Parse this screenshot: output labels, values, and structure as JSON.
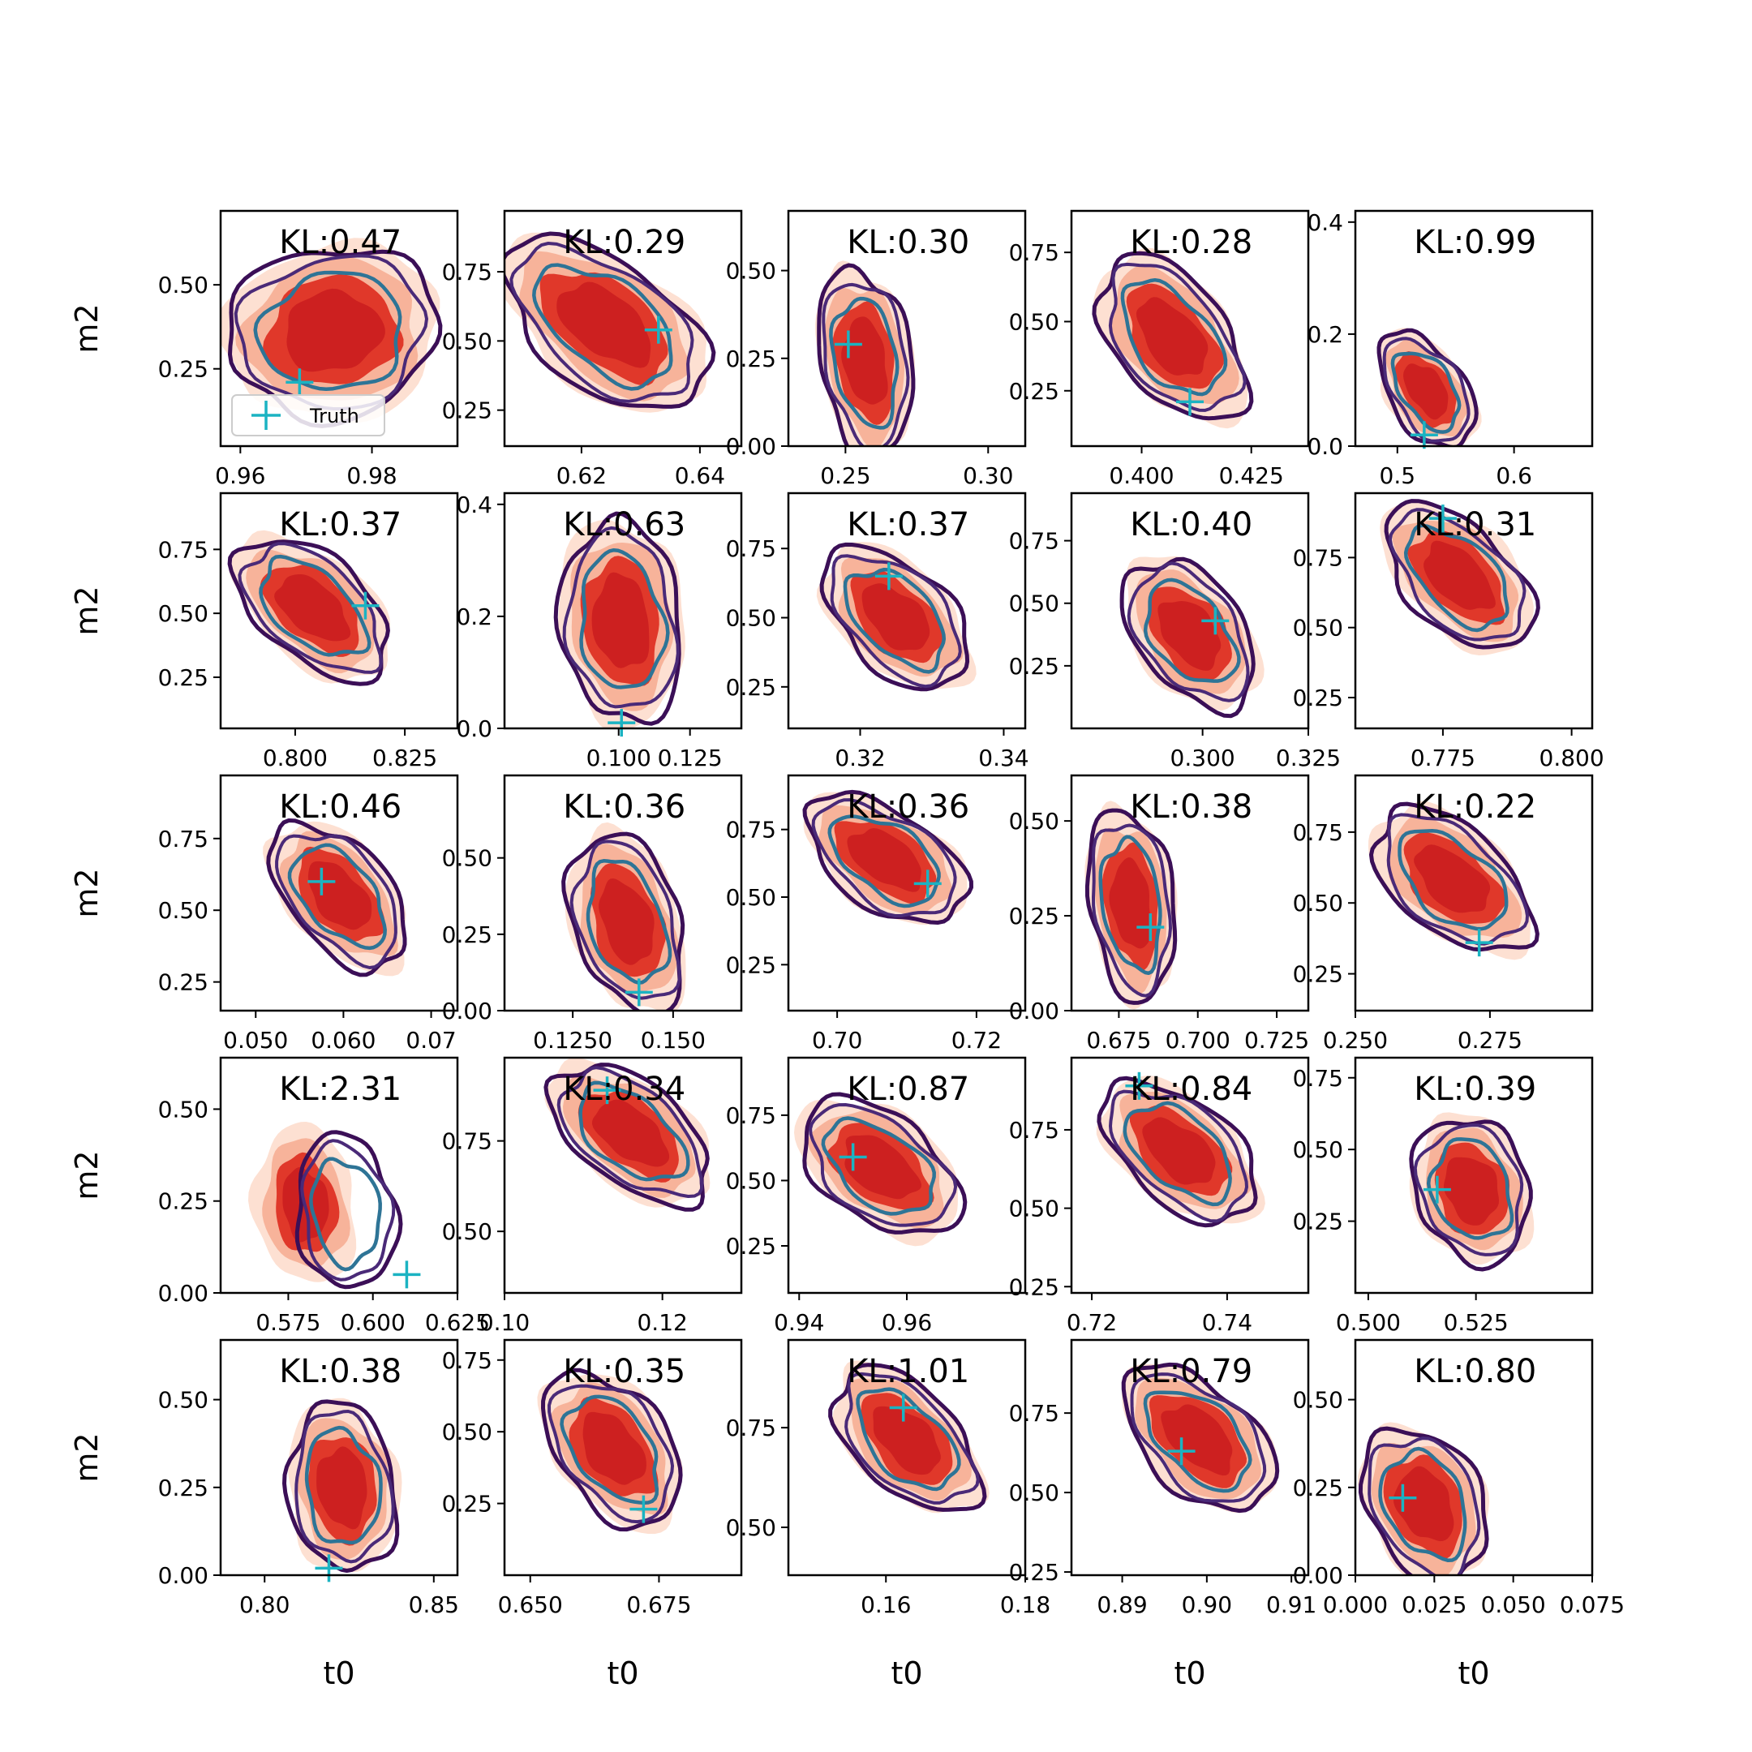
{
  "figure": {
    "x_axis_label": "t0",
    "y_axis_label": "m2",
    "legend_label": "Truth",
    "colors": {
      "filled_outer": "#fde0d2",
      "filled_mid": "#f7b39a",
      "filled_inner": "#e0382a",
      "filled_core": "#cd2020",
      "contour_outer": "#3b0f57",
      "contour_mid": "#4a2a78",
      "contour_inner": "#2e7496",
      "truth_marker": "#1bb3c2"
    }
  },
  "chart_data": [
    {
      "type": "contour",
      "kl": "KL:0.47",
      "xlim": [
        0.957,
        0.993
      ],
      "ylim": [
        0.02,
        0.72
      ],
      "xticks": [
        0.96,
        0.98
      ],
      "xtick_labels": [
        "0.96",
        "0.98"
      ],
      "yticks": [
        0.25,
        0.5
      ],
      "ytick_labels": [
        "0.25",
        "0.50"
      ],
      "truth": [
        0.969,
        0.21
      ],
      "center": [
        0.974,
        0.36
      ],
      "spread": [
        0.012,
        0.17
      ],
      "tilt": 0.05,
      "legend": true
    },
    {
      "type": "contour",
      "kl": "KL:0.29",
      "xlim": [
        0.607,
        0.647
      ],
      "ylim": [
        0.12,
        0.97
      ],
      "xticks": [
        0.62,
        0.64
      ],
      "xtick_labels": [
        "0.62",
        "0.64"
      ],
      "yticks": [
        0.25,
        0.5,
        0.75
      ],
      "ytick_labels": [
        "0.25",
        "0.50",
        "0.75"
      ],
      "truth": [
        0.633,
        0.54
      ],
      "center": [
        0.624,
        0.56
      ],
      "spread": [
        0.0095,
        0.24
      ],
      "tilt": -0.75
    },
    {
      "type": "contour",
      "kl": "KL:0.30",
      "xlim": [
        0.23,
        0.313
      ],
      "ylim": [
        0.0,
        0.67
      ],
      "xticks": [
        0.25,
        0.3
      ],
      "xtick_labels": [
        "0.25",
        "0.30"
      ],
      "yticks": [
        0.0,
        0.25,
        0.5
      ],
      "ytick_labels": [
        "0.00",
        "0.25",
        "0.50"
      ],
      "truth": [
        0.251,
        0.29
      ],
      "center": [
        0.257,
        0.24
      ],
      "spread": [
        0.012,
        0.18
      ],
      "tilt": -0.2
    },
    {
      "type": "contour",
      "kl": "KL:0.28",
      "xlim": [
        0.384,
        0.438
      ],
      "ylim": [
        0.05,
        0.9
      ],
      "xticks": [
        0.4,
        0.425
      ],
      "xtick_labels": [
        "0.400",
        "0.425"
      ],
      "yticks": [
        0.25,
        0.5,
        0.75
      ],
      "ytick_labels": [
        "0.25",
        "0.50",
        "0.75"
      ],
      "truth": [
        0.411,
        0.21
      ],
      "center": [
        0.407,
        0.44
      ],
      "spread": [
        0.01,
        0.22
      ],
      "tilt": -0.6
    },
    {
      "type": "contour",
      "kl": "KL:0.99",
      "xlim": [
        0.464,
        0.667
      ],
      "ylim": [
        0.0,
        0.42
      ],
      "xticks": [
        0.5,
        0.6
      ],
      "xtick_labels": [
        "0.5",
        "0.6"
      ],
      "yticks": [
        0.0,
        0.2,
        0.4
      ],
      "ytick_labels": [
        "0.0",
        "0.2",
        "0.4"
      ],
      "truth": [
        0.523,
        0.02
      ],
      "center": [
        0.525,
        0.1
      ],
      "spread": [
        0.025,
        0.075
      ],
      "tilt": -0.55
    },
    {
      "type": "contour",
      "kl": "KL:0.37",
      "xlim": [
        0.783,
        0.837
      ],
      "ylim": [
        0.05,
        0.97
      ],
      "xticks": [
        0.8,
        0.825
      ],
      "xtick_labels": [
        "0.800",
        "0.825"
      ],
      "yticks": [
        0.25,
        0.5,
        0.75
      ],
      "ytick_labels": [
        "0.25",
        "0.50",
        "0.75"
      ],
      "truth": [
        0.816,
        0.53
      ],
      "center": [
        0.804,
        0.52
      ],
      "spread": [
        0.01,
        0.21
      ],
      "tilt": -0.7
    },
    {
      "type": "contour",
      "kl": "KL:0.63",
      "xlim": [
        0.06,
        0.143
      ],
      "ylim": [
        0.0,
        0.42
      ],
      "xticks": [
        0.1,
        0.125
      ],
      "xtick_labels": [
        "0.100",
        "0.125"
      ],
      "yticks": [
        0.0,
        0.2,
        0.4
      ],
      "ytick_labels": [
        "0.0",
        "0.2",
        "0.4"
      ],
      "truth": [
        0.101,
        0.01
      ],
      "center": [
        0.101,
        0.19
      ],
      "spread": [
        0.016,
        0.12
      ],
      "tilt": -0.1
    },
    {
      "type": "contour",
      "kl": "KL:0.37",
      "xlim": [
        0.31,
        0.343
      ],
      "ylim": [
        0.1,
        0.95
      ],
      "xticks": [
        0.32,
        0.34
      ],
      "xtick_labels": [
        "0.32",
        "0.34"
      ],
      "yticks": [
        0.25,
        0.5,
        0.75
      ],
      "ytick_labels": [
        "0.25",
        "0.50",
        "0.75"
      ],
      "truth": [
        0.324,
        0.65
      ],
      "center": [
        0.325,
        0.5
      ],
      "spread": [
        0.006,
        0.19
      ],
      "tilt": -0.6
    },
    {
      "type": "contour",
      "kl": "KL:0.40",
      "xlim": [
        0.269,
        0.325
      ],
      "ylim": [
        0.0,
        0.94
      ],
      "xticks": [
        0.3,
        0.325
      ],
      "xtick_labels": [
        "0.300",
        "0.325"
      ],
      "yticks": [
        0.25,
        0.5,
        0.75
      ],
      "ytick_labels": [
        "0.25",
        "0.50",
        "0.75"
      ],
      "truth": [
        0.303,
        0.43
      ],
      "center": [
        0.297,
        0.38
      ],
      "spread": [
        0.01,
        0.21
      ],
      "tilt": -0.45
    },
    {
      "type": "contour",
      "kl": "KL:0.31",
      "xlim": [
        0.758,
        0.804
      ],
      "ylim": [
        0.14,
        0.98
      ],
      "xticks": [
        0.775,
        0.8
      ],
      "xtick_labels": [
        "0.775",
        "0.800"
      ],
      "yticks": [
        0.25,
        0.5,
        0.75
      ],
      "ytick_labels": [
        "0.25",
        "0.50",
        "0.75"
      ],
      "truth": [
        0.775,
        0.89
      ],
      "center": [
        0.778,
        0.68
      ],
      "spread": [
        0.008,
        0.2
      ],
      "tilt": -0.75
    },
    {
      "type": "contour",
      "kl": "KL:0.46",
      "xlim": [
        0.046,
        0.073
      ],
      "ylim": [
        0.15,
        0.97
      ],
      "xticks": [
        0.05,
        0.06,
        0.07
      ],
      "xtick_labels": [
        "0.050",
        "0.060",
        "0.07"
      ],
      "yticks": [
        0.25,
        0.5,
        0.75
      ],
      "ytick_labels": [
        "0.25",
        "0.50",
        "0.75"
      ],
      "truth": [
        0.0575,
        0.6
      ],
      "center": [
        0.0595,
        0.55
      ],
      "spread": [
        0.0045,
        0.19
      ],
      "tilt": -0.65
    },
    {
      "type": "contour",
      "kl": "KL:0.36",
      "xlim": [
        0.108,
        0.167
      ],
      "ylim": [
        0.0,
        0.77
      ],
      "xticks": [
        0.125,
        0.15
      ],
      "xtick_labels": [
        "0.1250",
        "0.150"
      ],
      "yticks": [
        0.0,
        0.25,
        0.5
      ],
      "ytick_labels": [
        "0.00",
        "0.25",
        "0.50"
      ],
      "truth": [
        0.1415,
        0.06
      ],
      "center": [
        0.1385,
        0.29
      ],
      "spread": [
        0.01,
        0.2
      ],
      "tilt": -0.3
    },
    {
      "type": "contour",
      "kl": "KL:0.36",
      "xlim": [
        0.693,
        0.727
      ],
      "ylim": [
        0.08,
        0.95
      ],
      "xticks": [
        0.7,
        0.72
      ],
      "xtick_labels": [
        "0.70",
        "0.72"
      ],
      "yticks": [
        0.25,
        0.5,
        0.75
      ],
      "ytick_labels": [
        "0.25",
        "0.50",
        "0.75"
      ],
      "truth": [
        0.713,
        0.55
      ],
      "center": [
        0.707,
        0.64
      ],
      "spread": [
        0.0065,
        0.18
      ],
      "tilt": -0.7
    },
    {
      "type": "contour",
      "kl": "KL:0.38",
      "xlim": [
        0.66,
        0.735
      ],
      "ylim": [
        0.0,
        0.62
      ],
      "xticks": [
        0.675,
        0.7,
        0.725
      ],
      "xtick_labels": [
        "0.675",
        "0.700",
        "0.725"
      ],
      "yticks": [
        0.0,
        0.25,
        0.5
      ],
      "ytick_labels": [
        "0.00",
        "0.25",
        "0.50"
      ],
      "truth": [
        0.685,
        0.22
      ],
      "center": [
        0.679,
        0.28
      ],
      "spread": [
        0.01,
        0.17
      ],
      "tilt": -0.2
    },
    {
      "type": "contour",
      "kl": "KL:0.22",
      "xlim": [
        0.25,
        0.294
      ],
      "ylim": [
        0.12,
        0.95
      ],
      "xticks": [
        0.25,
        0.275
      ],
      "xtick_labels": [
        "0.250",
        "0.275"
      ],
      "yticks": [
        0.25,
        0.5,
        0.75
      ],
      "ytick_labels": [
        "0.25",
        "0.50",
        "0.75"
      ],
      "truth": [
        0.273,
        0.36
      ],
      "center": [
        0.268,
        0.58
      ],
      "spread": [
        0.0085,
        0.19
      ],
      "tilt": -0.65
    },
    {
      "type": "contour",
      "kl": "KL:2.31",
      "xlim": [
        0.555,
        0.625
      ],
      "ylim": [
        0.0,
        0.64
      ],
      "xticks": [
        0.575,
        0.6,
        0.625
      ],
      "xtick_labels": [
        "0.575",
        "0.600",
        "0.625"
      ],
      "yticks": [
        0.0,
        0.25,
        0.5
      ],
      "ytick_labels": [
        "0.00",
        "0.25",
        "0.50"
      ],
      "truth": [
        0.61,
        0.05
      ],
      "center": [
        0.592,
        0.22
      ],
      "spread": [
        0.011,
        0.14
      ],
      "tilt": -0.1,
      "offset": [
        -0.012,
        0.02
      ]
    },
    {
      "type": "contour",
      "kl": "KL:0.34",
      "xlim": [
        0.1,
        0.13
      ],
      "ylim": [
        0.33,
        0.98
      ],
      "xticks": [
        0.1,
        0.12
      ],
      "xtick_labels": [
        "0.10",
        "0.12"
      ],
      "yticks": [
        0.5,
        0.75
      ],
      "ytick_labels": [
        "0.50",
        "0.75"
      ],
      "truth": [
        0.113,
        0.89
      ],
      "center": [
        0.116,
        0.77
      ],
      "spread": [
        0.0055,
        0.15
      ],
      "tilt": -0.8
    },
    {
      "type": "contour",
      "kl": "KL:0.87",
      "xlim": [
        0.938,
        0.982
      ],
      "ylim": [
        0.07,
        0.97
      ],
      "xticks": [
        0.94,
        0.96
      ],
      "xtick_labels": [
        "0.94",
        "0.96"
      ],
      "yticks": [
        0.25,
        0.5,
        0.75
      ],
      "ytick_labels": [
        "0.25",
        "0.50",
        "0.75"
      ],
      "truth": [
        0.95,
        0.59
      ],
      "center": [
        0.955,
        0.55
      ],
      "spread": [
        0.009,
        0.19
      ],
      "tilt": -0.55
    },
    {
      "type": "contour",
      "kl": "KL:0.84",
      "xlim": [
        0.717,
        0.752
      ],
      "ylim": [
        0.23,
        0.98
      ],
      "xticks": [
        0.72,
        0.74
      ],
      "xtick_labels": [
        "0.72",
        "0.74"
      ],
      "yticks": [
        0.25,
        0.5,
        0.75
      ],
      "ytick_labels": [
        "0.25",
        "0.50",
        "0.75"
      ],
      "truth": [
        0.727,
        0.89
      ],
      "center": [
        0.733,
        0.68
      ],
      "spread": [
        0.0065,
        0.17
      ],
      "tilt": -0.7
    },
    {
      "type": "contour",
      "kl": "KL:0.39",
      "xlim": [
        0.497,
        0.552
      ],
      "ylim": [
        0.0,
        0.82
      ],
      "xticks": [
        0.5,
        0.525
      ],
      "xtick_labels": [
        "0.500",
        "0.525"
      ],
      "yticks": [
        0.25,
        0.5,
        0.75
      ],
      "ytick_labels": [
        "0.25",
        "0.50",
        "0.75"
      ],
      "truth": [
        0.516,
        0.36
      ],
      "center": [
        0.524,
        0.36
      ],
      "spread": [
        0.01,
        0.17
      ],
      "tilt": -0.15
    },
    {
      "type": "contour",
      "kl": "KL:0.38",
      "xlim": [
        0.787,
        0.857
      ],
      "ylim": [
        0.0,
        0.67
      ],
      "xticks": [
        0.8,
        0.85
      ],
      "xtick_labels": [
        "0.80",
        "0.85"
      ],
      "yticks": [
        0.0,
        0.25,
        0.5
      ],
      "ytick_labels": [
        "0.00",
        "0.25",
        "0.50"
      ],
      "truth": [
        0.819,
        0.02
      ],
      "center": [
        0.823,
        0.25
      ],
      "spread": [
        0.012,
        0.16
      ],
      "tilt": -0.1
    },
    {
      "type": "contour",
      "kl": "KL:0.35",
      "xlim": [
        0.645,
        0.691
      ],
      "ylim": [
        0.0,
        0.82
      ],
      "xticks": [
        0.65,
        0.675
      ],
      "xtick_labels": [
        "0.650",
        "0.675"
      ],
      "yticks": [
        0.25,
        0.5,
        0.75
      ],
      "ytick_labels": [
        "0.25",
        "0.50",
        "0.75"
      ],
      "truth": [
        0.672,
        0.23
      ],
      "center": [
        0.666,
        0.44
      ],
      "spread": [
        0.0085,
        0.19
      ],
      "tilt": -0.45
    },
    {
      "type": "contour",
      "kl": "KL:1.01",
      "xlim": [
        0.146,
        0.18
      ],
      "ylim": [
        0.38,
        0.97
      ],
      "xticks": [
        0.16,
        0.18
      ],
      "xtick_labels": [
        "0.16",
        "0.18"
      ],
      "yticks": [
        0.5,
        0.75
      ],
      "ytick_labels": [
        "0.50",
        "0.75"
      ],
      "truth": [
        0.1625,
        0.8
      ],
      "center": [
        0.163,
        0.72
      ],
      "spread": [
        0.0058,
        0.14
      ],
      "tilt": -0.75
    },
    {
      "type": "contour",
      "kl": "KL:0.79",
      "xlim": [
        0.884,
        0.912
      ],
      "ylim": [
        0.24,
        0.98
      ],
      "xticks": [
        0.89,
        0.9,
        0.91
      ],
      "xtick_labels": [
        "0.89",
        "0.90",
        "0.91"
      ],
      "yticks": [
        0.25,
        0.5,
        0.75
      ],
      "ytick_labels": [
        "0.25",
        "0.50",
        "0.75"
      ],
      "truth": [
        0.897,
        0.63
      ],
      "center": [
        0.899,
        0.67
      ],
      "spread": [
        0.0052,
        0.17
      ],
      "tilt": -0.65
    },
    {
      "type": "contour",
      "kl": "KL:0.80",
      "xlim": [
        0.0,
        0.075
      ],
      "ylim": [
        0.0,
        0.67
      ],
      "xticks": [
        0.0,
        0.025,
        0.05,
        0.075
      ],
      "xtick_labels": [
        "0.000",
        "0.025",
        "0.050",
        "0.075"
      ],
      "yticks": [
        0.0,
        0.25,
        0.5
      ],
      "ytick_labels": [
        "0.00",
        "0.25",
        "0.50"
      ],
      "truth": [
        0.015,
        0.22
      ],
      "center": [
        0.022,
        0.2
      ],
      "spread": [
        0.014,
        0.15
      ],
      "tilt": -0.25
    }
  ]
}
